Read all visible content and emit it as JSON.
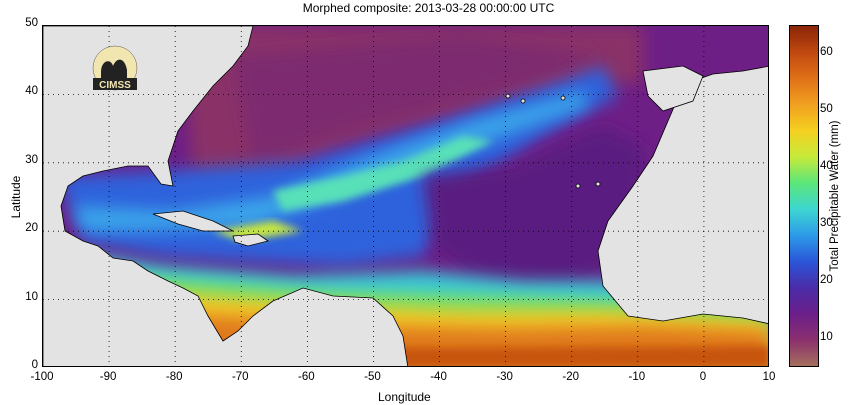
{
  "title": "Morphed composite: 2013-03-28 00:00:00 UTC",
  "map": {
    "xlabel": "Longitude",
    "ylabel": "Latitude",
    "x_ticks": [
      "-100",
      "-90",
      "-80",
      "-70",
      "-60",
      "-50",
      "-40",
      "-30",
      "-20",
      "-10",
      "0",
      "10"
    ],
    "y_ticks": [
      "0",
      "10",
      "20",
      "30",
      "40",
      "50"
    ],
    "x_range": [
      -100,
      10
    ],
    "y_range": [
      0,
      50
    ],
    "grid": "dotted",
    "logo_text": "CIMSS",
    "land_color": "#e3e3e3",
    "coast_color": "#000000"
  },
  "colorbar": {
    "label": "Total Precipitable Water (mm)",
    "ticks": [
      "10",
      "20",
      "30",
      "40",
      "50",
      "60"
    ],
    "range": [
      5,
      65
    ],
    "colors": [
      "#a4705c",
      "#8b2f6e",
      "#6a1f8a",
      "#4a2ca8",
      "#2a56d8",
      "#2d9be8",
      "#3dd6d0",
      "#5ce67a",
      "#c7ea3a",
      "#f5d020",
      "#f0a020",
      "#e07018",
      "#c04810",
      "#8a2508"
    ]
  }
}
